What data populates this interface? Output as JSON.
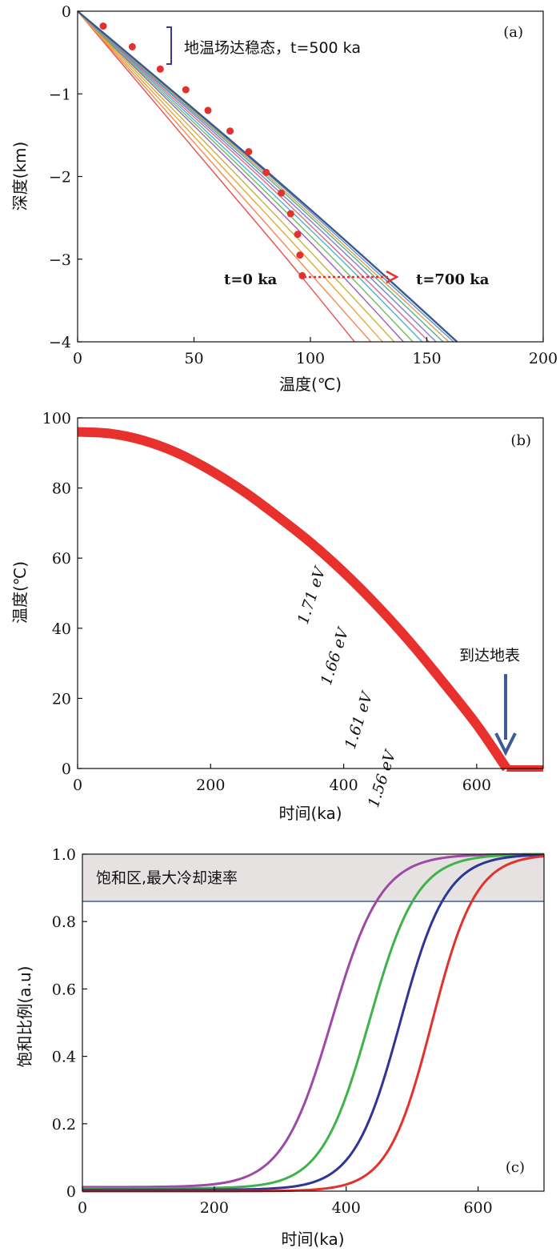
{
  "chart_data": [
    {
      "panel": "a",
      "type": "line",
      "panel_label": "(a)",
      "xlabel": "温度(℃)",
      "ylabel": "深度(km)",
      "xlim": [
        0,
        200
      ],
      "ylim": [
        -4,
        0
      ],
      "x_ticks": [
        0,
        50,
        100,
        150,
        200
      ],
      "y_ticks": [
        0,
        -1,
        -2,
        -3,
        -4
      ],
      "x_tick_labels": [
        "0",
        "50",
        "100",
        "150",
        "200"
      ],
      "y_tick_labels": [
        "0",
        "−1",
        "−2",
        "−3",
        "−4"
      ],
      "series": [
        {
          "name": "t=0 ka",
          "color": "#e8514f",
          "x": [
            0,
            30,
            60,
            90,
            119
          ],
          "y": [
            0,
            -1,
            -2,
            -3,
            -4
          ]
        },
        {
          "color": "#f28a54",
          "x": [
            0,
            31.5,
            63,
            94.5,
            126
          ],
          "y": [
            0,
            -1,
            -2,
            -3,
            -4
          ]
        },
        {
          "color": "#e7a83a",
          "x": [
            0,
            33,
            66,
            99,
            131
          ],
          "y": [
            0,
            -1,
            -2,
            -3,
            -4
          ]
        },
        {
          "color": "#c8b33a",
          "x": [
            0,
            34.5,
            69,
            103,
            136
          ],
          "y": [
            0,
            -1,
            -2,
            -3,
            -4
          ]
        },
        {
          "color": "#a25fb7",
          "x": [
            0,
            36,
            72,
            107,
            140
          ],
          "y": [
            0,
            -1,
            -2,
            -3,
            -4
          ]
        },
        {
          "color": "#6fbf5a",
          "x": [
            0,
            37,
            74,
            110,
            144
          ],
          "y": [
            0,
            -1,
            -2,
            -3,
            -4
          ]
        },
        {
          "color": "#4ab1d8",
          "x": [
            0,
            38,
            76,
            113,
            148
          ],
          "y": [
            0,
            -1,
            -2,
            -3,
            -4
          ]
        },
        {
          "color": "#d96a86",
          "x": [
            0,
            39,
            78,
            115,
            151
          ],
          "y": [
            0,
            -1,
            -2,
            -3,
            -4
          ]
        },
        {
          "color": "#7d7fd0",
          "x": [
            0,
            40,
            79.5,
            117.5,
            154
          ],
          "y": [
            0,
            -1,
            -2,
            -3,
            -4
          ]
        },
        {
          "color": "#54b090",
          "x": [
            0,
            40.7,
            81,
            119.5,
            157
          ],
          "y": [
            0,
            -1,
            -2,
            -3,
            -4
          ]
        },
        {
          "color": "#d9a34e",
          "x": [
            0,
            41.3,
            82,
            121,
            159.5
          ],
          "y": [
            0,
            -1,
            -2,
            -3,
            -4
          ]
        },
        {
          "color": "#5b8fd6",
          "x": [
            0,
            41.8,
            83,
            122.5,
            161.5
          ],
          "y": [
            0,
            -1,
            -2,
            -3,
            -4
          ]
        },
        {
          "name": "t=700 ka",
          "color": "#3a5a8c",
          "x": [
            0,
            42.2,
            83.8,
            124,
            163
          ],
          "y": [
            0,
            -1,
            -2,
            -3,
            -4
          ]
        }
      ],
      "points": {
        "name": "rock trajectory",
        "color": "#e3322e",
        "x": [
          11,
          23.5,
          35.5,
          46.5,
          56,
          65.5,
          73.5,
          81,
          87.5,
          91.5,
          94.5,
          95.5,
          96.5
        ],
        "y": [
          -0.18,
          -0.43,
          -0.7,
          -0.95,
          -1.2,
          -1.45,
          -1.7,
          -1.95,
          -2.2,
          -2.45,
          -2.7,
          -2.95,
          -3.2
        ]
      },
      "annotations": {
        "steady_state": "地温场达稳态，t=500 ka",
        "start": "t=0 ka",
        "end": "t=700 ka"
      }
    },
    {
      "panel": "b",
      "type": "line",
      "panel_label": "(b)",
      "xlabel": "时间(ka)",
      "ylabel": "温度(℃)",
      "xlim": [
        0,
        700
      ],
      "ylim": [
        0,
        100
      ],
      "x_ticks": [
        0,
        200,
        400,
        600
      ],
      "y_ticks": [
        0,
        20,
        40,
        60,
        80,
        100
      ],
      "series": [
        {
          "name": "temperature",
          "color": "#e8302c",
          "x": [
            0,
            50,
            100,
            150,
            200,
            250,
            300,
            350,
            400,
            450,
            500,
            550,
            600,
            645,
            700
          ],
          "y": [
            96,
            95.5,
            93.5,
            90,
            85,
            79,
            72,
            64.5,
            56,
            46.5,
            36,
            24.5,
            12.5,
            0,
            0
          ]
        }
      ],
      "annotations": {
        "surface_label": "到达地表",
        "surface_time": 645
      }
    },
    {
      "panel": "c",
      "type": "line",
      "panel_label": "(c)",
      "xlabel": "时间(ka)",
      "ylabel": "饱和比例(a.u)",
      "xlim": [
        0,
        700
      ],
      "ylim": [
        0,
        1.0
      ],
      "x_ticks": [
        0,
        200,
        400,
        600
      ],
      "y_ticks": [
        0,
        0.2,
        0.4,
        0.6,
        0.8,
        1.0
      ],
      "x_tick_labels": [
        "0",
        "200",
        "400",
        "600"
      ],
      "y_tick_labels": [
        "0",
        "0.2",
        "0.4",
        "0.6",
        "0.8",
        "1.0"
      ],
      "saturation_threshold": 0.86,
      "saturation_label": "饱和区,最大冷却速率",
      "series": [
        {
          "name": "1.71 eV",
          "color": "#9c4aa6",
          "x0": 378,
          "k": 0.0265,
          "baseline": 0.012
        },
        {
          "name": "1.66 eV",
          "color": "#3fb24a",
          "x0": 435,
          "k": 0.0275,
          "baseline": 0.008
        },
        {
          "name": "1.61 eV",
          "color": "#2e3596",
          "x0": 482,
          "k": 0.0285,
          "baseline": 0.004
        },
        {
          "name": "1.56 eV",
          "color": "#e3312d",
          "x0": 530,
          "k": 0.03,
          "baseline": 0.0
        }
      ]
    }
  ]
}
